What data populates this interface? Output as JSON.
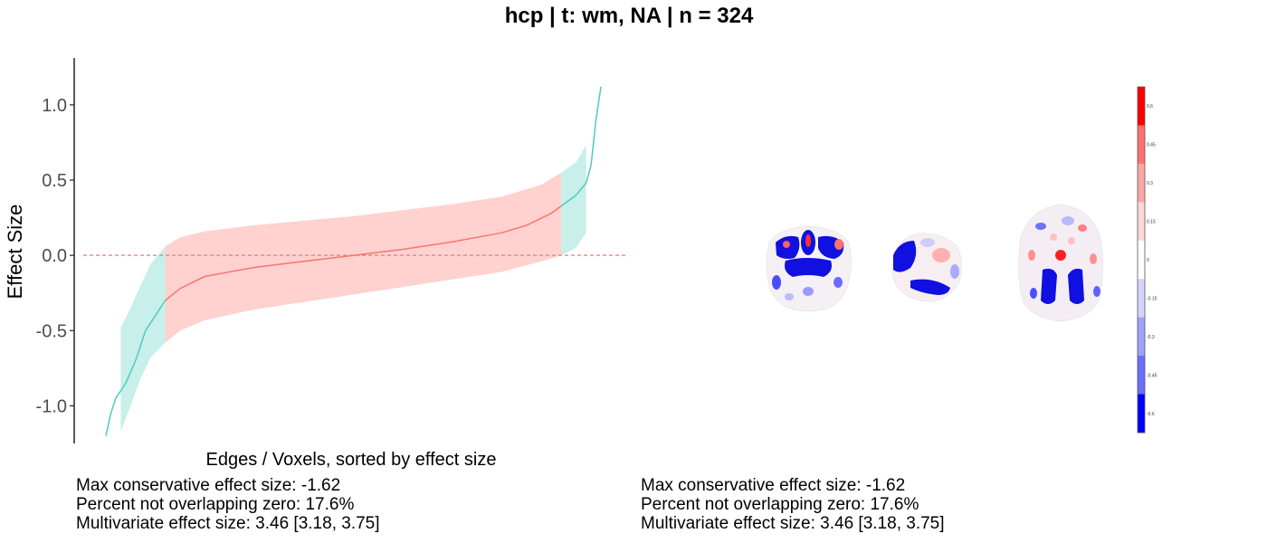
{
  "title": "hcp | t: wm, NA | n = 324",
  "chart_data": {
    "type": "line",
    "xlabel": "Edges / Voxels, sorted by effect size",
    "ylabel": "Effect Size",
    "ylim": [
      -1.25,
      1.3
    ],
    "yticks": [
      -1.0,
      -0.5,
      0.0,
      0.5,
      1.0
    ],
    "ytick_labels": [
      "-1.0",
      "-0.5",
      "0.0",
      "0.5",
      "1.0"
    ],
    "reference_line_y": 0,
    "colors": {
      "overlapping_zero_line": "#f8766d",
      "overlapping_zero_band": "#ffd1cf",
      "not_overlapping_line": "#4fcbbd",
      "not_overlapping_band": "#c8efea",
      "reference_line": "#d98080"
    },
    "curve_points": [
      [
        0.0,
        -1.2
      ],
      [
        0.01,
        -1.05
      ],
      [
        0.02,
        -0.95
      ],
      [
        0.04,
        -0.85
      ],
      [
        0.06,
        -0.7
      ],
      [
        0.08,
        -0.5
      ],
      [
        0.1,
        -0.4
      ],
      [
        0.12,
        -0.3
      ],
      [
        0.15,
        -0.22
      ],
      [
        0.2,
        -0.14
      ],
      [
        0.3,
        -0.08
      ],
      [
        0.4,
        -0.04
      ],
      [
        0.5,
        0.0
      ],
      [
        0.6,
        0.04
      ],
      [
        0.7,
        0.09
      ],
      [
        0.8,
        0.15
      ],
      [
        0.85,
        0.2
      ],
      [
        0.9,
        0.28
      ],
      [
        0.95,
        0.4
      ],
      [
        0.97,
        0.48
      ],
      [
        0.98,
        0.6
      ],
      [
        0.99,
        0.9
      ],
      [
        1.0,
        1.12
      ]
    ],
    "band_lower": [
      [
        0.03,
        -1.17
      ],
      [
        0.05,
        -1.0
      ],
      [
        0.07,
        -0.82
      ],
      [
        0.09,
        -0.68
      ],
      [
        0.12,
        -0.58
      ],
      [
        0.15,
        -0.5
      ],
      [
        0.2,
        -0.43
      ],
      [
        0.3,
        -0.36
      ],
      [
        0.4,
        -0.31
      ],
      [
        0.5,
        -0.26
      ],
      [
        0.6,
        -0.21
      ],
      [
        0.7,
        -0.16
      ],
      [
        0.8,
        -0.11
      ],
      [
        0.88,
        -0.04
      ],
      [
        0.92,
        0.0
      ],
      [
        0.95,
        0.05
      ],
      [
        0.97,
        0.15
      ]
    ],
    "band_upper": [
      [
        0.03,
        -0.48
      ],
      [
        0.05,
        -0.35
      ],
      [
        0.07,
        -0.2
      ],
      [
        0.09,
        -0.06
      ],
      [
        0.12,
        0.06
      ],
      [
        0.15,
        0.12
      ],
      [
        0.2,
        0.16
      ],
      [
        0.3,
        0.2
      ],
      [
        0.4,
        0.23
      ],
      [
        0.5,
        0.26
      ],
      [
        0.6,
        0.3
      ],
      [
        0.7,
        0.34
      ],
      [
        0.8,
        0.39
      ],
      [
        0.88,
        0.47
      ],
      [
        0.92,
        0.55
      ],
      [
        0.95,
        0.62
      ],
      [
        0.97,
        0.73
      ]
    ],
    "overlap_zero_x_range": [
      0.12,
      0.92
    ]
  },
  "colorbar": {
    "tick_labels": [
      "0.6",
      "0.45",
      "0.3",
      "0.15",
      "0",
      "-0.15",
      "-0.3",
      "-0.45",
      "-0.6"
    ],
    "colors": [
      "#ff0000",
      "#ff7070",
      "#ffa7a7",
      "#ffd8d8",
      "#ffffff",
      "#d4d4ff",
      "#a0a0ff",
      "#6c6cff",
      "#0000ff"
    ]
  },
  "stats_left": {
    "line1": "Max conservative effect size: -1.62",
    "line2": "Percent not overlapping zero: 17.6%",
    "line3": "Multivariate effect size: 3.46 [3.18, 3.75]"
  },
  "stats_right": {
    "line1": "Max conservative effect size: -1.62",
    "line2": "Percent not overlapping zero: 17.6%",
    "line3": "Multivariate effect size: 3.46 [3.18, 3.75]"
  }
}
